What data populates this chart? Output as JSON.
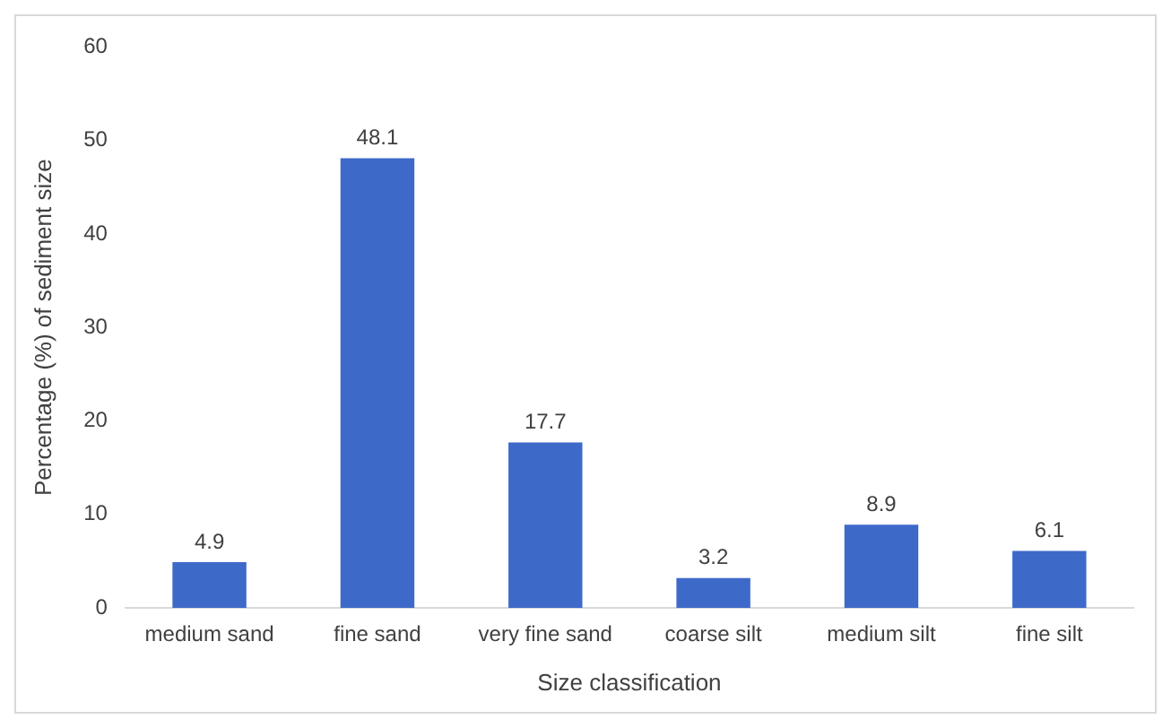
{
  "chart_data": {
    "type": "bar",
    "xlabel": "Size classification",
    "ylabel": "Percentage (%) of sediment size",
    "categories": [
      "medium sand",
      "fine sand",
      "very fine sand",
      "coarse silt",
      "medium silt",
      "fine silt"
    ],
    "values": [
      4.9,
      48.1,
      17.7,
      3.2,
      8.9,
      6.1
    ],
    "color": "#3d69c9",
    "ylim": [
      0,
      60
    ],
    "yticks": [
      0,
      10,
      20,
      30,
      40,
      50,
      60
    ],
    "grid": false,
    "data_labels": true,
    "legend": false
  }
}
